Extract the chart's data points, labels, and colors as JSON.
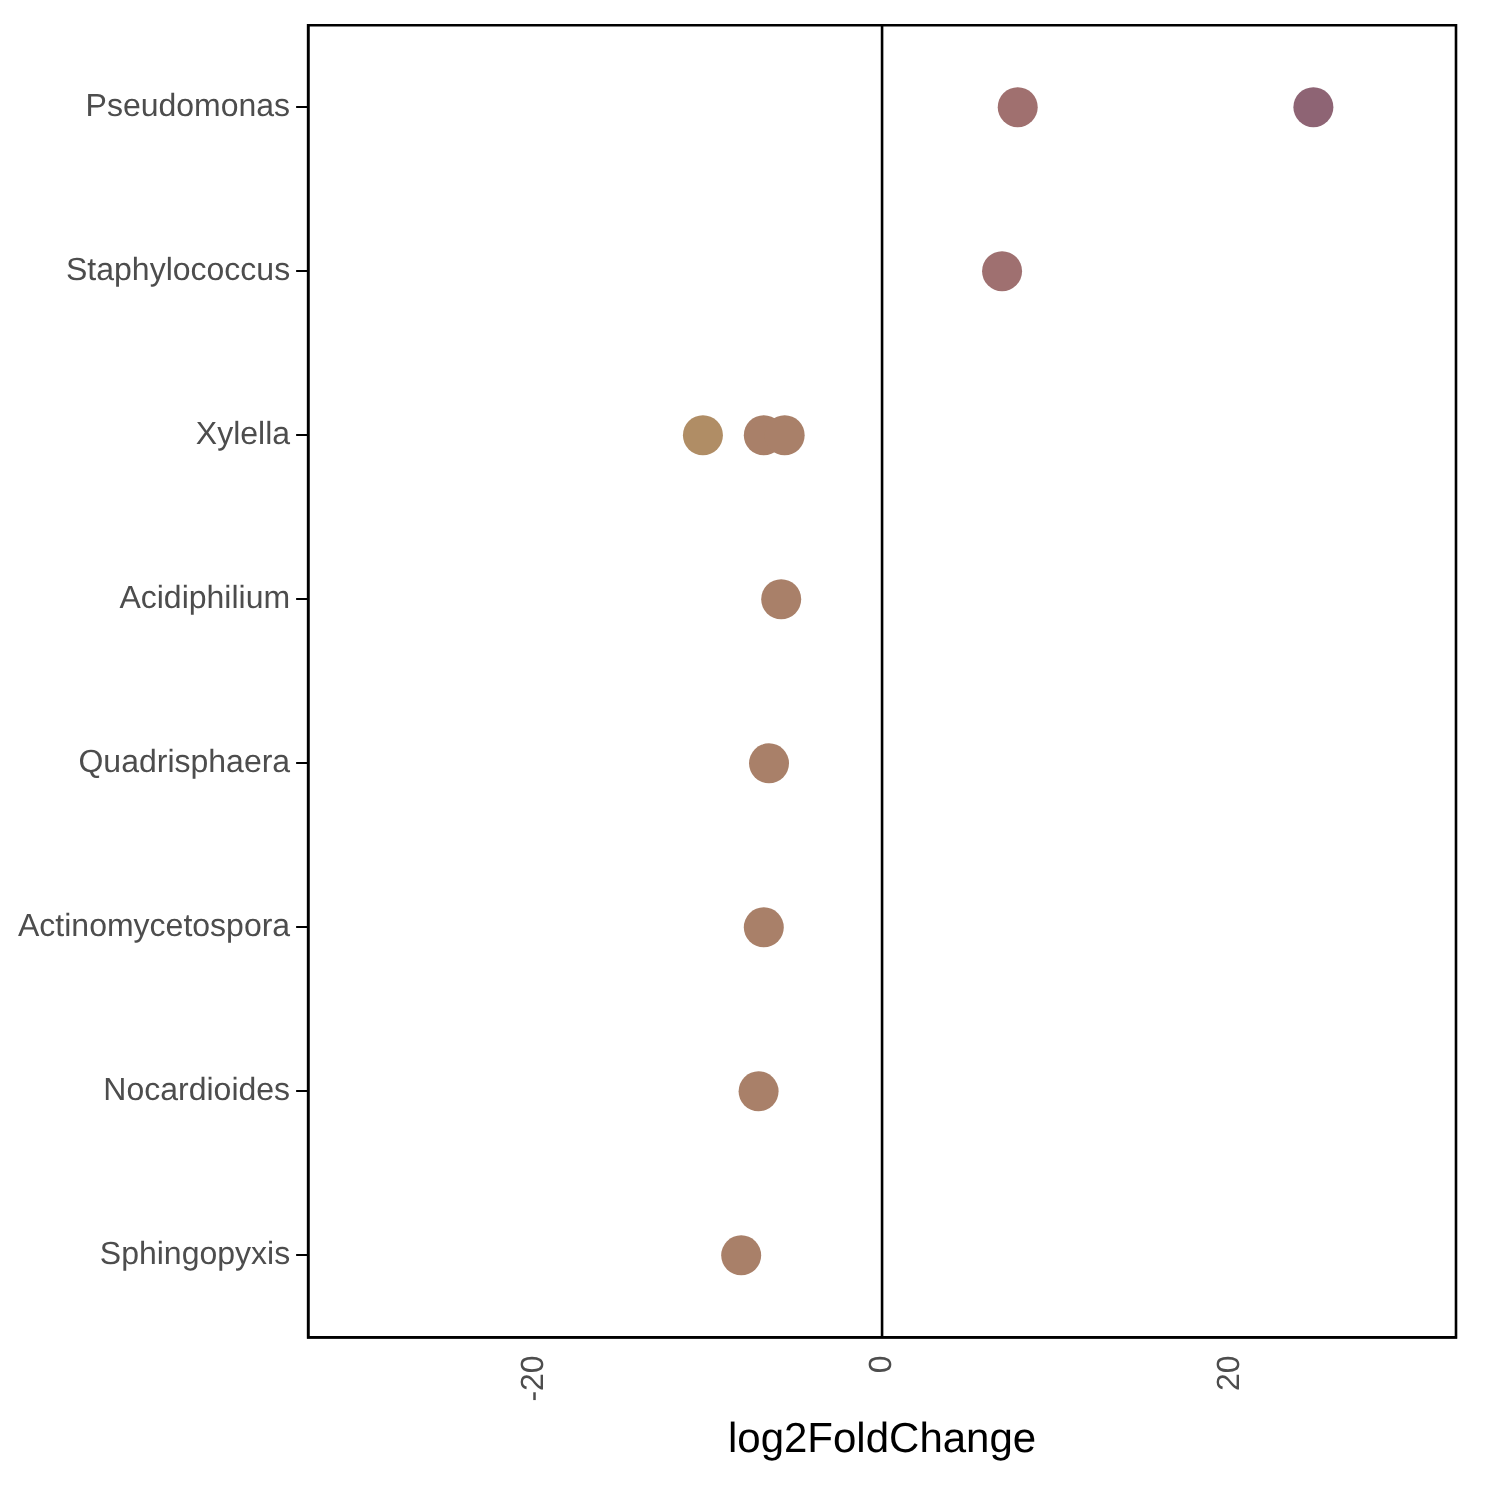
{
  "chart_data": {
    "type": "scatter",
    "orientation": "horizontal",
    "xlabel": "log2FoldChange",
    "categories": [
      "Pseudomonas",
      "Staphylococcus",
      "Xylella",
      "Acidiphilium",
      "Quadrisphaera",
      "Actinomycetospora",
      "Nocardioides",
      "Sphingopyxis"
    ],
    "series": [
      {
        "x": [
          "Pseudomonas",
          "Pseudomonas",
          "Staphylococcus",
          "Xylella",
          "Xylella",
          "Xylella",
          "Acidiphilium",
          "Quadrisphaera",
          "Actinomycetospora",
          "Nocardioides",
          "Sphingopyxis"
        ],
        "values": [
          7.8,
          24.8,
          6.9,
          -10.3,
          -6.8,
          -5.6,
          -5.8,
          -6.5,
          -6.8,
          -7.1,
          -8.1
        ],
        "colors": [
          "#a0706f",
          "#8e6474",
          "#9f7070",
          "#b08d65",
          "#a98069",
          "#a98069",
          "#a98069",
          "#a98069",
          "#a98069",
          "#a98069",
          "#a98069"
        ]
      }
    ],
    "xlim": [
      -33,
      33
    ],
    "xticks": [
      -20,
      0,
      20
    ],
    "ref_lines": [
      {
        "axis": "x",
        "value": 0,
        "color": "#000000"
      }
    ],
    "grid": false,
    "legend": false,
    "marker": "circle"
  }
}
